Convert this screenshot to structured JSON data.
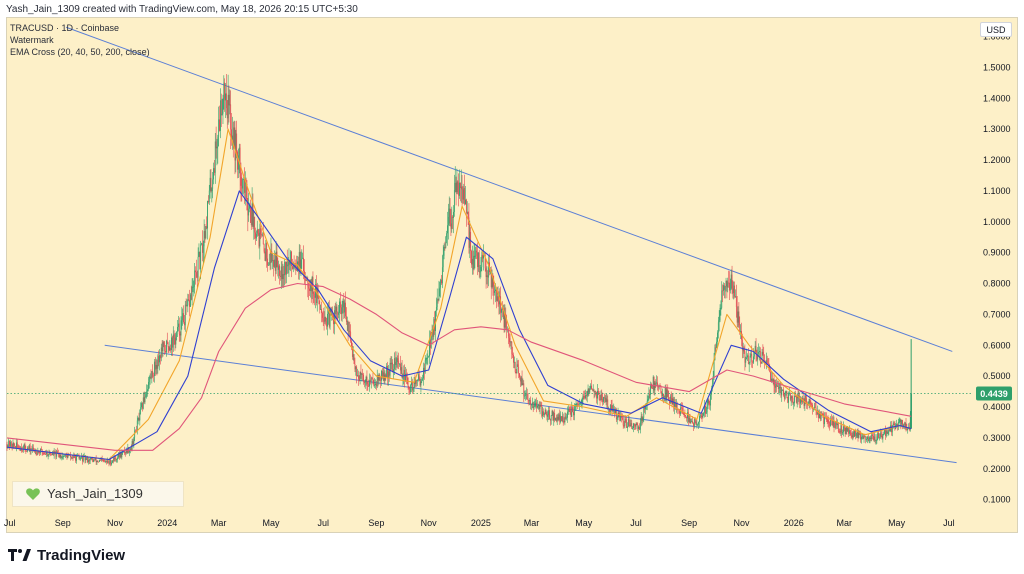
{
  "header": {
    "created_line": "Yash_Jain_1309 created with TradingView.com, May 18, 2026 20:15 UTC+5:30"
  },
  "legend": {
    "symbol_line": "TRACUSD · 1D · Coinbase",
    "watermark_label": "Watermark",
    "indicator_line": "EMA Cross (20, 40, 50, 200, close)"
  },
  "currency_label": "USD",
  "watermark_text": "Yash_Jain_1309",
  "brand_text": "TradingView",
  "icons": {
    "heart": "green-heart-icon",
    "brand": "tradingview-logo-icon"
  },
  "colors": {
    "background": "#fdf0c8",
    "trendline": "#5b7fd6",
    "ema_fast": "#f2a52a",
    "ema_mid": "#2f3fd1",
    "ema_slow": "#e0557a",
    "up": "#2e9f6b",
    "down": "#e0454f",
    "price_tag": "#2e9f6b"
  },
  "chart_data": {
    "type": "candlestick",
    "title": "TRACUSD · 1D · Coinbase",
    "ylim": [
      0.06,
      1.66
    ],
    "y_ticks": [
      "0.1000",
      "0.2000",
      "0.3000",
      "0.4000",
      "0.5000",
      "0.6000",
      "0.7000",
      "0.8000",
      "0.9000",
      "1.0000",
      "1.1000",
      "1.2000",
      "1.3000",
      "1.4000",
      "1.5000",
      "1.6000"
    ],
    "x_ticks": [
      {
        "label": "Jul",
        "date": "2023-07-01"
      },
      {
        "label": "Sep",
        "date": "2023-09-01"
      },
      {
        "label": "Nov",
        "date": "2023-11-01"
      },
      {
        "label": "2024",
        "date": "2024-01-01"
      },
      {
        "label": "Mar",
        "date": "2024-03-01"
      },
      {
        "label": "May",
        "date": "2024-05-01"
      },
      {
        "label": "Jul",
        "date": "2024-07-01"
      },
      {
        "label": "Sep",
        "date": "2024-09-01"
      },
      {
        "label": "Nov",
        "date": "2024-11-01"
      },
      {
        "label": "2025",
        "date": "2025-01-01"
      },
      {
        "label": "Mar",
        "date": "2025-03-01"
      },
      {
        "label": "May",
        "date": "2025-05-01"
      },
      {
        "label": "Jul",
        "date": "2025-07-01"
      },
      {
        "label": "Sep",
        "date": "2025-09-01"
      },
      {
        "label": "Nov",
        "date": "2025-11-01"
      },
      {
        "label": "2026",
        "date": "2026-01-01"
      },
      {
        "label": "Mar",
        "date": "2026-03-01"
      },
      {
        "label": "May",
        "date": "2026-05-01"
      },
      {
        "label": "Jul",
        "date": "2026-07-01"
      }
    ],
    "current_price": "0.4439",
    "price_path": [
      [
        "2023-06-28",
        0.28
      ],
      [
        "2023-08-15",
        0.25
      ],
      [
        "2023-10-01",
        0.23
      ],
      [
        "2023-10-25",
        0.22
      ],
      [
        "2023-11-20",
        0.27
      ],
      [
        "2023-12-10",
        0.48
      ],
      [
        "2023-12-25",
        0.58
      ],
      [
        "2024-01-10",
        0.62
      ],
      [
        "2024-01-25",
        0.72
      ],
      [
        "2024-02-10",
        0.9
      ],
      [
        "2024-02-25",
        1.2
      ],
      [
        "2024-03-07",
        1.45
      ],
      [
        "2024-03-20",
        1.25
      ],
      [
        "2024-04-05",
        1.05
      ],
      [
        "2024-04-25",
        0.9
      ],
      [
        "2024-05-15",
        0.85
      ],
      [
        "2024-06-01",
        0.88
      ],
      [
        "2024-06-20",
        0.78
      ],
      [
        "2024-07-05",
        0.68
      ],
      [
        "2024-07-25",
        0.72
      ],
      [
        "2024-08-10",
        0.5
      ],
      [
        "2024-08-25",
        0.48
      ],
      [
        "2024-09-10",
        0.5
      ],
      [
        "2024-09-25",
        0.55
      ],
      [
        "2024-10-10",
        0.46
      ],
      [
        "2024-10-25",
        0.5
      ],
      [
        "2024-11-10",
        0.7
      ],
      [
        "2024-11-25",
        1.0
      ],
      [
        "2024-12-08",
        1.15
      ],
      [
        "2024-12-22",
        0.88
      ],
      [
        "2025-01-10",
        0.85
      ],
      [
        "2025-01-25",
        0.72
      ],
      [
        "2025-02-08",
        0.55
      ],
      [
        "2025-02-22",
        0.44
      ],
      [
        "2025-03-15",
        0.38
      ],
      [
        "2025-04-05",
        0.36
      ],
      [
        "2025-04-25",
        0.4
      ],
      [
        "2025-05-10",
        0.46
      ],
      [
        "2025-05-25",
        0.42
      ],
      [
        "2025-06-15",
        0.35
      ],
      [
        "2025-07-05",
        0.34
      ],
      [
        "2025-07-20",
        0.48
      ],
      [
        "2025-08-05",
        0.44
      ],
      [
        "2025-08-25",
        0.38
      ],
      [
        "2025-09-10",
        0.34
      ],
      [
        "2025-09-25",
        0.42
      ],
      [
        "2025-10-08",
        0.75
      ],
      [
        "2025-10-20",
        0.82
      ],
      [
        "2025-11-05",
        0.55
      ],
      [
        "2025-11-20",
        0.58
      ],
      [
        "2025-12-10",
        0.48
      ],
      [
        "2025-12-25",
        0.43
      ],
      [
        "2026-01-15",
        0.42
      ],
      [
        "2026-02-05",
        0.36
      ],
      [
        "2026-02-25",
        0.33
      ],
      [
        "2026-03-15",
        0.31
      ],
      [
        "2026-04-05",
        0.3
      ],
      [
        "2026-04-20",
        0.32
      ],
      [
        "2026-05-05",
        0.35
      ],
      [
        "2026-05-16",
        0.33
      ],
      [
        "2026-05-18",
        0.4439
      ]
    ],
    "series": [
      {
        "name": "EMA 20",
        "color": "#f2a52a",
        "points": [
          [
            "2023-06-28",
            0.27
          ],
          [
            "2023-10-25",
            0.23
          ],
          [
            "2023-12-10",
            0.36
          ],
          [
            "2024-01-15",
            0.55
          ],
          [
            "2024-02-20",
            0.95
          ],
          [
            "2024-03-12",
            1.3
          ],
          [
            "2024-04-05",
            1.1
          ],
          [
            "2024-05-01",
            0.9
          ],
          [
            "2024-06-01",
            0.86
          ],
          [
            "2024-07-01",
            0.74
          ],
          [
            "2024-08-01",
            0.6
          ],
          [
            "2024-09-01",
            0.5
          ],
          [
            "2024-10-15",
            0.48
          ],
          [
            "2024-11-15",
            0.72
          ],
          [
            "2024-12-10",
            1.05
          ],
          [
            "2025-01-10",
            0.86
          ],
          [
            "2025-02-10",
            0.6
          ],
          [
            "2025-03-15",
            0.42
          ],
          [
            "2025-05-01",
            0.4
          ],
          [
            "2025-06-20",
            0.37
          ],
          [
            "2025-07-25",
            0.43
          ],
          [
            "2025-09-10",
            0.36
          ],
          [
            "2025-10-15",
            0.7
          ],
          [
            "2025-11-10",
            0.6
          ],
          [
            "2025-12-20",
            0.47
          ],
          [
            "2026-02-05",
            0.37
          ],
          [
            "2026-03-25",
            0.31
          ],
          [
            "2026-05-05",
            0.34
          ],
          [
            "2026-05-18",
            0.33
          ]
        ]
      },
      {
        "name": "EMA 40",
        "color": "#2f3fd1",
        "points": [
          [
            "2023-06-28",
            0.27
          ],
          [
            "2023-10-25",
            0.23
          ],
          [
            "2023-12-20",
            0.32
          ],
          [
            "2024-01-25",
            0.5
          ],
          [
            "2024-02-25",
            0.85
          ],
          [
            "2024-03-25",
            1.1
          ],
          [
            "2024-04-20",
            1.0
          ],
          [
            "2024-05-20",
            0.88
          ],
          [
            "2024-06-25",
            0.78
          ],
          [
            "2024-07-25",
            0.65
          ],
          [
            "2024-08-25",
            0.55
          ],
          [
            "2024-10-01",
            0.5
          ],
          [
            "2024-11-01",
            0.52
          ],
          [
            "2024-11-25",
            0.75
          ],
          [
            "2024-12-15",
            0.95
          ],
          [
            "2025-01-15",
            0.88
          ],
          [
            "2025-02-15",
            0.65
          ],
          [
            "2025-03-20",
            0.47
          ],
          [
            "2025-05-01",
            0.41
          ],
          [
            "2025-06-25",
            0.38
          ],
          [
            "2025-08-01",
            0.43
          ],
          [
            "2025-09-15",
            0.38
          ],
          [
            "2025-10-20",
            0.6
          ],
          [
            "2025-11-15",
            0.58
          ],
          [
            "2025-12-20",
            0.49
          ],
          [
            "2026-02-10",
            0.39
          ],
          [
            "2026-04-01",
            0.32
          ],
          [
            "2026-05-05",
            0.34
          ],
          [
            "2026-05-18",
            0.33
          ]
        ]
      },
      {
        "name": "EMA 200",
        "color": "#e0557a",
        "points": [
          [
            "2023-06-28",
            0.3
          ],
          [
            "2023-11-01",
            0.26
          ],
          [
            "2023-12-15",
            0.26
          ],
          [
            "2024-01-15",
            0.33
          ],
          [
            "2024-02-10",
            0.43
          ],
          [
            "2024-03-01",
            0.58
          ],
          [
            "2024-04-01",
            0.72
          ],
          [
            "2024-05-01",
            0.78
          ],
          [
            "2024-06-01",
            0.8
          ],
          [
            "2024-07-01",
            0.79
          ],
          [
            "2024-08-01",
            0.75
          ],
          [
            "2024-09-01",
            0.7
          ],
          [
            "2024-10-01",
            0.64
          ],
          [
            "2024-11-01",
            0.6
          ],
          [
            "2024-12-01",
            0.65
          ],
          [
            "2025-01-01",
            0.66
          ],
          [
            "2025-02-01",
            0.65
          ],
          [
            "2025-03-01",
            0.61
          ],
          [
            "2025-05-01",
            0.55
          ],
          [
            "2025-07-01",
            0.48
          ],
          [
            "2025-09-01",
            0.45
          ],
          [
            "2025-10-15",
            0.52
          ],
          [
            "2025-11-15",
            0.5
          ],
          [
            "2026-01-01",
            0.46
          ],
          [
            "2026-03-01",
            0.41
          ],
          [
            "2026-05-18",
            0.37
          ]
        ]
      }
    ],
    "trendlines": [
      {
        "name": "upper",
        "from": [
          "2023-09-05",
          1.63
        ],
        "to": [
          "2026-07-05",
          0.58
        ]
      },
      {
        "name": "lower",
        "from": [
          "2023-10-20",
          0.6
        ],
        "to": [
          "2026-07-10",
          0.22
        ]
      }
    ],
    "legend": "top-left",
    "grid": false
  }
}
